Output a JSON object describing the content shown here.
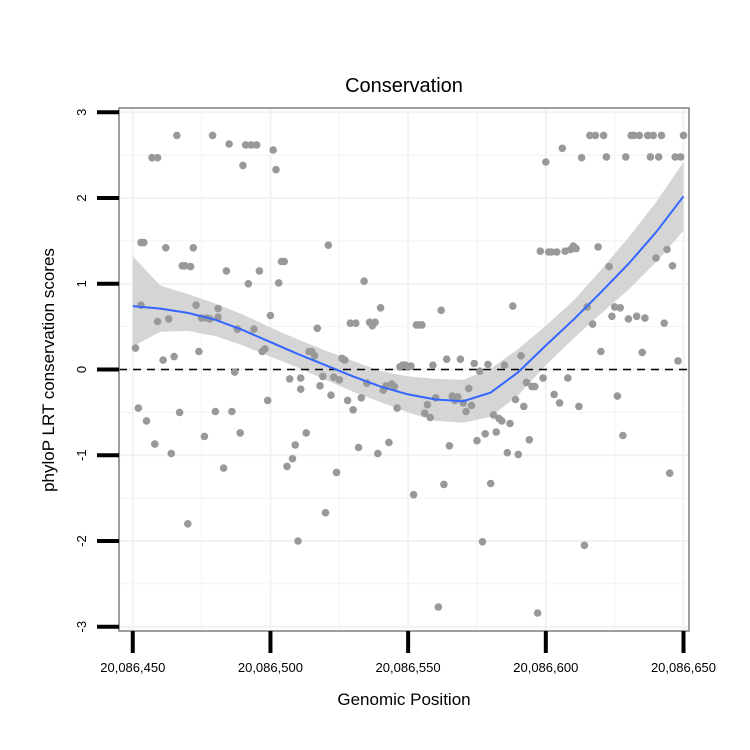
{
  "chart_data": {
    "type": "scatter",
    "title": "Conservation",
    "xlabel": "Genomic Position",
    "ylabel": "phyloP LRT conservation scores",
    "xlim": [
      20086445,
      20086652
    ],
    "ylim": [
      -3.05,
      3.05
    ],
    "x_ticks": [
      20086450,
      20086500,
      20086550,
      20086600,
      20086650
    ],
    "x_tick_labels": [
      "20,086,450",
      "20,086,500",
      "20,086,550",
      "20,086,600",
      "20,086,650"
    ],
    "y_ticks": [
      -3,
      -2,
      -1,
      0,
      1,
      2,
      3
    ],
    "y_tick_labels": [
      "-3",
      "-2",
      "-1",
      "0",
      "1",
      "2",
      "3"
    ],
    "grid": true,
    "reference_line": {
      "y": 0,
      "style": "dashed"
    },
    "colors": {
      "points": "#999999",
      "smooth": "#3366ff",
      "band": "#d3d3d3",
      "panel": "#ffffff",
      "grid": "#f2f2f2",
      "border": "#7f7f7f"
    },
    "points": [
      [
        20086451,
        0.25
      ],
      [
        20086452,
        -0.45
      ],
      [
        20086453,
        0.75
      ],
      [
        20086453,
        1.48
      ],
      [
        20086454,
        1.48
      ],
      [
        20086455,
        -0.6
      ],
      [
        20086457,
        2.47
      ],
      [
        20086458,
        -0.87
      ],
      [
        20086459,
        2.47
      ],
      [
        20086459,
        0.56
      ],
      [
        20086461,
        0.11
      ],
      [
        20086462,
        1.42
      ],
      [
        20086463,
        0.59
      ],
      [
        20086464,
        -0.98
      ],
      [
        20086465,
        0.15
      ],
      [
        20086466,
        2.73
      ],
      [
        20086467,
        -0.5
      ],
      [
        20086468,
        1.21
      ],
      [
        20086469,
        1.21
      ],
      [
        20086470,
        -1.8
      ],
      [
        20086471,
        1.2
      ],
      [
        20086472,
        1.42
      ],
      [
        20086473,
        0.75
      ],
      [
        20086474,
        0.21
      ],
      [
        20086475,
        0.6
      ],
      [
        20086476,
        -0.78
      ],
      [
        20086477,
        0.6
      ],
      [
        20086478,
        0.59
      ],
      [
        20086479,
        2.73
      ],
      [
        20086480,
        -0.49
      ],
      [
        20086481,
        0.71
      ],
      [
        20086481,
        0.61
      ],
      [
        20086483,
        -1.15
      ],
      [
        20086484,
        1.15
      ],
      [
        20086485,
        2.63
      ],
      [
        20086486,
        -0.49
      ],
      [
        20086487,
        -0.03
      ],
      [
        20086488,
        0.47
      ],
      [
        20086489,
        -0.74
      ],
      [
        20086490,
        2.38
      ],
      [
        20086491,
        2.62
      ],
      [
        20086492,
        1.0
      ],
      [
        20086493,
        2.62
      ],
      [
        20086494,
        0.47
      ],
      [
        20086495,
        2.62
      ],
      [
        20086496,
        1.15
      ],
      [
        20086497,
        0.21
      ],
      [
        20086498,
        0.24
      ],
      [
        20086499,
        -0.36
      ],
      [
        20086500,
        0.63
      ],
      [
        20086501,
        2.56
      ],
      [
        20086502,
        2.33
      ],
      [
        20086503,
        1.01
      ],
      [
        20086504,
        1.26
      ],
      [
        20086505,
        1.26
      ],
      [
        20086506,
        -1.13
      ],
      [
        20086507,
        -0.11
      ],
      [
        20086508,
        -1.04
      ],
      [
        20086509,
        -0.88
      ],
      [
        20086510,
        -2.0
      ],
      [
        20086511,
        -0.23
      ],
      [
        20086511,
        -0.1
      ],
      [
        20086513,
        -0.74
      ],
      [
        20086514,
        0.21
      ],
      [
        20086515,
        0.21
      ],
      [
        20086516,
        0.16
      ],
      [
        20086517,
        0.48
      ],
      [
        20086518,
        -0.19
      ],
      [
        20086519,
        -0.08
      ],
      [
        20086520,
        -1.67
      ],
      [
        20086521,
        1.45
      ],
      [
        20086522,
        -0.3
      ],
      [
        20086523,
        -0.09
      ],
      [
        20086524,
        -1.2
      ],
      [
        20086525,
        -0.12
      ],
      [
        20086526,
        0.13
      ],
      [
        20086527,
        0.11
      ],
      [
        20086528,
        -0.36
      ],
      [
        20086529,
        0.54
      ],
      [
        20086530,
        -0.47
      ],
      [
        20086531,
        0.54
      ],
      [
        20086532,
        -0.91
      ],
      [
        20086533,
        -0.33
      ],
      [
        20086534,
        1.03
      ],
      [
        20086535,
        -0.16
      ],
      [
        20086536,
        0.55
      ],
      [
        20086537,
        0.51
      ],
      [
        20086538,
        0.55
      ],
      [
        20086539,
        -0.98
      ],
      [
        20086540,
        0.72
      ],
      [
        20086541,
        -0.24
      ],
      [
        20086542,
        -0.19
      ],
      [
        20086543,
        -0.85
      ],
      [
        20086544,
        -0.17
      ],
      [
        20086545,
        -0.2
      ],
      [
        20086546,
        -0.45
      ],
      [
        20086547,
        0.03
      ],
      [
        20086548,
        0.05
      ],
      [
        20086549,
        0.05
      ],
      [
        20086550,
        0.03
      ],
      [
        20086551,
        0.04
      ],
      [
        20086552,
        -1.46
      ],
      [
        20086553,
        0.52
      ],
      [
        20086554,
        0.52
      ],
      [
        20086555,
        0.52
      ],
      [
        20086556,
        -0.51
      ],
      [
        20086557,
        -0.41
      ],
      [
        20086558,
        -0.56
      ],
      [
        20086559,
        0.05
      ],
      [
        20086560,
        -0.33
      ],
      [
        20086561,
        -2.77
      ],
      [
        20086562,
        0.69
      ],
      [
        20086563,
        -1.34
      ],
      [
        20086564,
        0.12
      ],
      [
        20086565,
        -0.89
      ],
      [
        20086566,
        -0.31
      ],
      [
        20086567,
        -0.36
      ],
      [
        20086568,
        -0.32
      ],
      [
        20086569,
        0.12
      ],
      [
        20086570,
        -0.39
      ],
      [
        20086571,
        -0.49
      ],
      [
        20086572,
        -0.22
      ],
      [
        20086573,
        -0.42
      ],
      [
        20086574,
        0.07
      ],
      [
        20086575,
        -0.83
      ],
      [
        20086576,
        -0.02
      ],
      [
        20086577,
        -2.01
      ],
      [
        20086578,
        -0.75
      ],
      [
        20086579,
        0.06
      ],
      [
        20086580,
        -1.33
      ],
      [
        20086581,
        -0.53
      ],
      [
        20086582,
        -0.73
      ],
      [
        20086583,
        -0.57
      ],
      [
        20086584,
        -0.6
      ],
      [
        20086585,
        0.05
      ],
      [
        20086586,
        -0.97
      ],
      [
        20086587,
        -0.63
      ],
      [
        20086588,
        0.74
      ],
      [
        20086589,
        -0.35
      ],
      [
        20086590,
        -0.99
      ],
      [
        20086591,
        0.16
      ],
      [
        20086592,
        -0.43
      ],
      [
        20086593,
        -0.15
      ],
      [
        20086594,
        -0.82
      ],
      [
        20086595,
        -0.2
      ],
      [
        20086596,
        -0.2
      ],
      [
        20086597,
        -2.84
      ],
      [
        20086598,
        1.38
      ],
      [
        20086599,
        -0.1
      ],
      [
        20086600,
        2.42
      ],
      [
        20086601,
        1.37
      ],
      [
        20086602,
        1.37
      ],
      [
        20086603,
        -0.29
      ],
      [
        20086604,
        1.37
      ],
      [
        20086605,
        -0.39
      ],
      [
        20086606,
        2.58
      ],
      [
        20086607,
        1.38
      ],
      [
        20086608,
        -0.1
      ],
      [
        20086609,
        1.4
      ],
      [
        20086610,
        1.44
      ],
      [
        20086611,
        1.41
      ],
      [
        20086612,
        -0.43
      ],
      [
        20086613,
        2.47
      ],
      [
        20086614,
        -2.05
      ],
      [
        20086615,
        0.73
      ],
      [
        20086616,
        2.73
      ],
      [
        20086617,
        0.53
      ],
      [
        20086618,
        2.73
      ],
      [
        20086619,
        1.43
      ],
      [
        20086620,
        0.21
      ],
      [
        20086621,
        2.73
      ],
      [
        20086622,
        2.48
      ],
      [
        20086623,
        1.2
      ],
      [
        20086624,
        0.62
      ],
      [
        20086625,
        0.73
      ],
      [
        20086626,
        -0.31
      ],
      [
        20086627,
        0.72
      ],
      [
        20086628,
        -0.77
      ],
      [
        20086629,
        2.48
      ],
      [
        20086630,
        0.59
      ],
      [
        20086631,
        2.73
      ],
      [
        20086632,
        2.73
      ],
      [
        20086633,
        0.62
      ],
      [
        20086634,
        2.73
      ],
      [
        20086635,
        0.2
      ],
      [
        20086636,
        0.6
      ],
      [
        20086637,
        2.73
      ],
      [
        20086638,
        2.48
      ],
      [
        20086639,
        2.73
      ],
      [
        20086640,
        1.3
      ],
      [
        20086641,
        2.48
      ],
      [
        20086642,
        2.73
      ],
      [
        20086643,
        0.54
      ],
      [
        20086644,
        1.4
      ],
      [
        20086645,
        -1.21
      ],
      [
        20086646,
        1.21
      ],
      [
        20086647,
        2.48
      ],
      [
        20086648,
        0.1
      ],
      [
        20086649,
        2.48
      ],
      [
        20086650,
        2.73
      ]
    ],
    "smooth": {
      "x": [
        20086450,
        20086460,
        20086470,
        20086480,
        20086490,
        20086500,
        20086510,
        20086520,
        20086530,
        20086540,
        20086550,
        20086560,
        20086570,
        20086580,
        20086590,
        20086600,
        20086610,
        20086620,
        20086630,
        20086640,
        20086650
      ],
      "y": [
        0.74,
        0.71,
        0.66,
        0.58,
        0.46,
        0.32,
        0.18,
        0.05,
        -0.08,
        -0.2,
        -0.29,
        -0.35,
        -0.37,
        -0.27,
        -0.03,
        0.28,
        0.58,
        0.9,
        1.23,
        1.6,
        2.02
      ],
      "lower": [
        0.27,
        0.44,
        0.45,
        0.39,
        0.28,
        0.15,
        0.02,
        -0.12,
        -0.26,
        -0.38,
        -0.5,
        -0.6,
        -0.62,
        -0.55,
        -0.3,
        0.05,
        0.36,
        0.65,
        0.93,
        1.25,
        1.62
      ],
      "upper": [
        1.32,
        0.98,
        0.88,
        0.77,
        0.64,
        0.49,
        0.35,
        0.22,
        0.1,
        -0.02,
        -0.08,
        -0.11,
        -0.12,
        0.01,
        0.24,
        0.51,
        0.8,
        1.16,
        1.54,
        1.95,
        2.42
      ]
    }
  }
}
